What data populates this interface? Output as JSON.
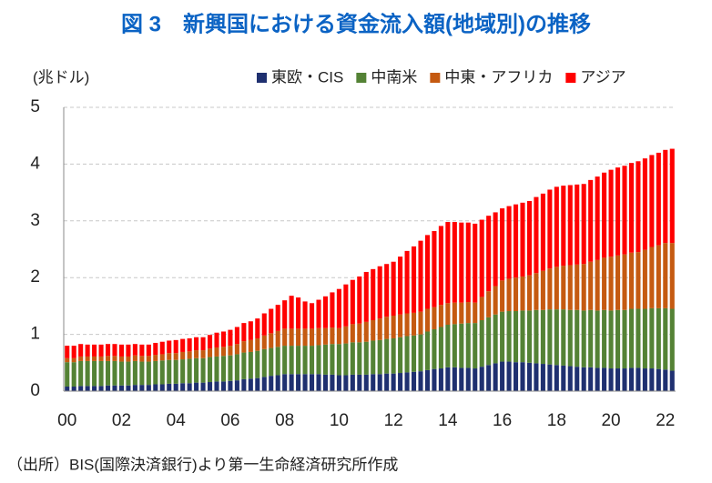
{
  "chart_data": {
    "type": "stacked-bar",
    "title": "図 3　新興国における資金流入額(地域別)の推移",
    "y_label": "(兆ドル)",
    "source": "（出所）BIS(国際決済銀行)より第一生命経済研究所作成",
    "categories": [
      "00",
      null,
      null,
      null,
      null,
      null,
      null,
      null,
      "02",
      null,
      null,
      null,
      null,
      null,
      null,
      null,
      "04",
      null,
      null,
      null,
      null,
      null,
      null,
      null,
      "06",
      null,
      null,
      null,
      null,
      null,
      null,
      null,
      "08",
      null,
      null,
      null,
      null,
      null,
      null,
      null,
      "10",
      null,
      null,
      null,
      null,
      null,
      null,
      null,
      "12",
      null,
      null,
      null,
      null,
      null,
      null,
      null,
      "14",
      null,
      null,
      null,
      null,
      null,
      null,
      null,
      "16",
      null,
      null,
      null,
      null,
      null,
      null,
      null,
      "18",
      null,
      null,
      null,
      null,
      null,
      null,
      null,
      "20",
      null,
      null,
      null,
      null,
      null,
      null,
      null,
      "22",
      null
    ],
    "series": [
      {
        "name": "東欧・CIS",
        "color": "#1f3070",
        "values": [
          0.08,
          0.08,
          0.09,
          0.09,
          0.09,
          0.09,
          0.1,
          0.1,
          0.1,
          0.1,
          0.11,
          0.11,
          0.11,
          0.12,
          0.12,
          0.13,
          0.13,
          0.14,
          0.14,
          0.15,
          0.15,
          0.16,
          0.17,
          0.17,
          0.18,
          0.19,
          0.21,
          0.22,
          0.23,
          0.25,
          0.27,
          0.28,
          0.3,
          0.3,
          0.3,
          0.3,
          0.3,
          0.3,
          0.29,
          0.29,
          0.28,
          0.28,
          0.29,
          0.29,
          0.29,
          0.3,
          0.3,
          0.31,
          0.31,
          0.32,
          0.33,
          0.34,
          0.35,
          0.37,
          0.39,
          0.4,
          0.42,
          0.42,
          0.41,
          0.41,
          0.4,
          0.43,
          0.46,
          0.49,
          0.52,
          0.52,
          0.51,
          0.51,
          0.5,
          0.49,
          0.48,
          0.47,
          0.46,
          0.45,
          0.44,
          0.43,
          0.42,
          0.42,
          0.41,
          0.41,
          0.4,
          0.4,
          0.4,
          0.41,
          0.41,
          0.4,
          0.4,
          0.39,
          0.38,
          0.36
        ]
      },
      {
        "name": "中南米",
        "color": "#548235",
        "values": [
          0.43,
          0.43,
          0.44,
          0.44,
          0.44,
          0.44,
          0.43,
          0.43,
          0.42,
          0.42,
          0.42,
          0.41,
          0.41,
          0.41,
          0.42,
          0.42,
          0.42,
          0.42,
          0.43,
          0.43,
          0.43,
          0.44,
          0.44,
          0.45,
          0.45,
          0.46,
          0.47,
          0.47,
          0.48,
          0.49,
          0.49,
          0.5,
          0.5,
          0.5,
          0.5,
          0.5,
          0.5,
          0.51,
          0.53,
          0.54,
          0.55,
          0.56,
          0.57,
          0.57,
          0.58,
          0.59,
          0.6,
          0.61,
          0.62,
          0.63,
          0.64,
          0.64,
          0.65,
          0.68,
          0.7,
          0.73,
          0.75,
          0.76,
          0.78,
          0.79,
          0.8,
          0.82,
          0.84,
          0.86,
          0.88,
          0.89,
          0.9,
          0.91,
          0.92,
          0.94,
          0.95,
          0.97,
          0.98,
          0.99,
          0.99,
          1.0,
          1.0,
          1.01,
          1.01,
          1.02,
          1.02,
          1.03,
          1.03,
          1.04,
          1.04,
          1.05,
          1.06,
          1.07,
          1.08,
          1.09
        ]
      },
      {
        "name": "中東・アフリカ",
        "color": "#c55a11",
        "values": [
          0.07,
          0.07,
          0.08,
          0.08,
          0.08,
          0.08,
          0.09,
          0.09,
          0.09,
          0.09,
          0.1,
          0.1,
          0.1,
          0.11,
          0.11,
          0.12,
          0.12,
          0.13,
          0.13,
          0.14,
          0.14,
          0.15,
          0.16,
          0.16,
          0.17,
          0.18,
          0.2,
          0.21,
          0.22,
          0.24,
          0.26,
          0.28,
          0.3,
          0.3,
          0.3,
          0.3,
          0.3,
          0.3,
          0.29,
          0.29,
          0.28,
          0.3,
          0.32,
          0.33,
          0.35,
          0.36,
          0.38,
          0.39,
          0.4,
          0.4,
          0.4,
          0.4,
          0.4,
          0.4,
          0.39,
          0.39,
          0.38,
          0.38,
          0.37,
          0.37,
          0.36,
          0.41,
          0.46,
          0.5,
          0.55,
          0.57,
          0.59,
          0.6,
          0.62,
          0.65,
          0.69,
          0.72,
          0.75,
          0.77,
          0.79,
          0.8,
          0.82,
          0.85,
          0.89,
          0.92,
          0.95,
          0.96,
          0.98,
          0.99,
          1.0,
          1.04,
          1.08,
          1.11,
          1.15,
          1.16
        ]
      },
      {
        "name": "アジア",
        "color": "#ff0000",
        "values": [
          0.22,
          0.22,
          0.22,
          0.21,
          0.21,
          0.21,
          0.21,
          0.21,
          0.21,
          0.21,
          0.2,
          0.2,
          0.2,
          0.21,
          0.22,
          0.22,
          0.23,
          0.23,
          0.23,
          0.23,
          0.23,
          0.24,
          0.26,
          0.27,
          0.28,
          0.3,
          0.32,
          0.33,
          0.35,
          0.39,
          0.43,
          0.46,
          0.5,
          0.58,
          0.55,
          0.48,
          0.45,
          0.5,
          0.56,
          0.62,
          0.69,
          0.74,
          0.78,
          0.83,
          0.88,
          0.9,
          0.92,
          0.93,
          0.95,
          1.02,
          1.1,
          1.17,
          1.25,
          1.3,
          1.34,
          1.39,
          1.43,
          1.42,
          1.41,
          1.4,
          1.39,
          1.36,
          1.33,
          1.3,
          1.27,
          1.28,
          1.29,
          1.3,
          1.31,
          1.34,
          1.36,
          1.39,
          1.41,
          1.41,
          1.41,
          1.41,
          1.41,
          1.44,
          1.47,
          1.5,
          1.53,
          1.55,
          1.56,
          1.58,
          1.6,
          1.61,
          1.62,
          1.63,
          1.64,
          1.66
        ]
      }
    ],
    "ylim": [
      0,
      5
    ],
    "yticks": [
      0,
      1,
      2,
      3,
      4,
      5
    ],
    "grid": true,
    "legend": "top-right"
  }
}
